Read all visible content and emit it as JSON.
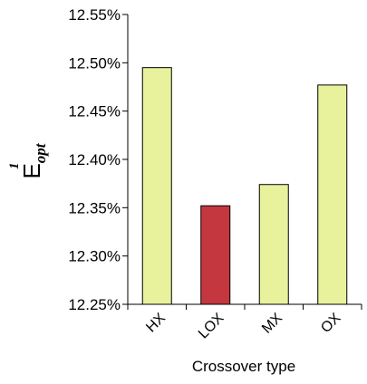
{
  "chart_data": {
    "type": "bar",
    "categories": [
      "HX",
      "LOX",
      "MX",
      "OX"
    ],
    "values": [
      12.495,
      12.352,
      12.374,
      12.477
    ],
    "highlight_index": 1,
    "colors": {
      "default_bar": "#e8f29d",
      "highlight_bar": "#c4373f",
      "bar_stroke": "#000000",
      "axis": "#000000"
    },
    "ylim": [
      12.25,
      12.55
    ],
    "yticks": [
      "12.25%",
      "12.30%",
      "12.35%",
      "12.40%",
      "12.45%",
      "12.50%",
      "12.55%"
    ],
    "ytick_values": [
      12.25,
      12.3,
      12.35,
      12.4,
      12.45,
      12.5,
      12.55
    ],
    "ylabel": {
      "main": "E",
      "sub": "opt",
      "sup": "1"
    },
    "xlabel": "Crossover type",
    "grid": false,
    "legend": "none"
  }
}
